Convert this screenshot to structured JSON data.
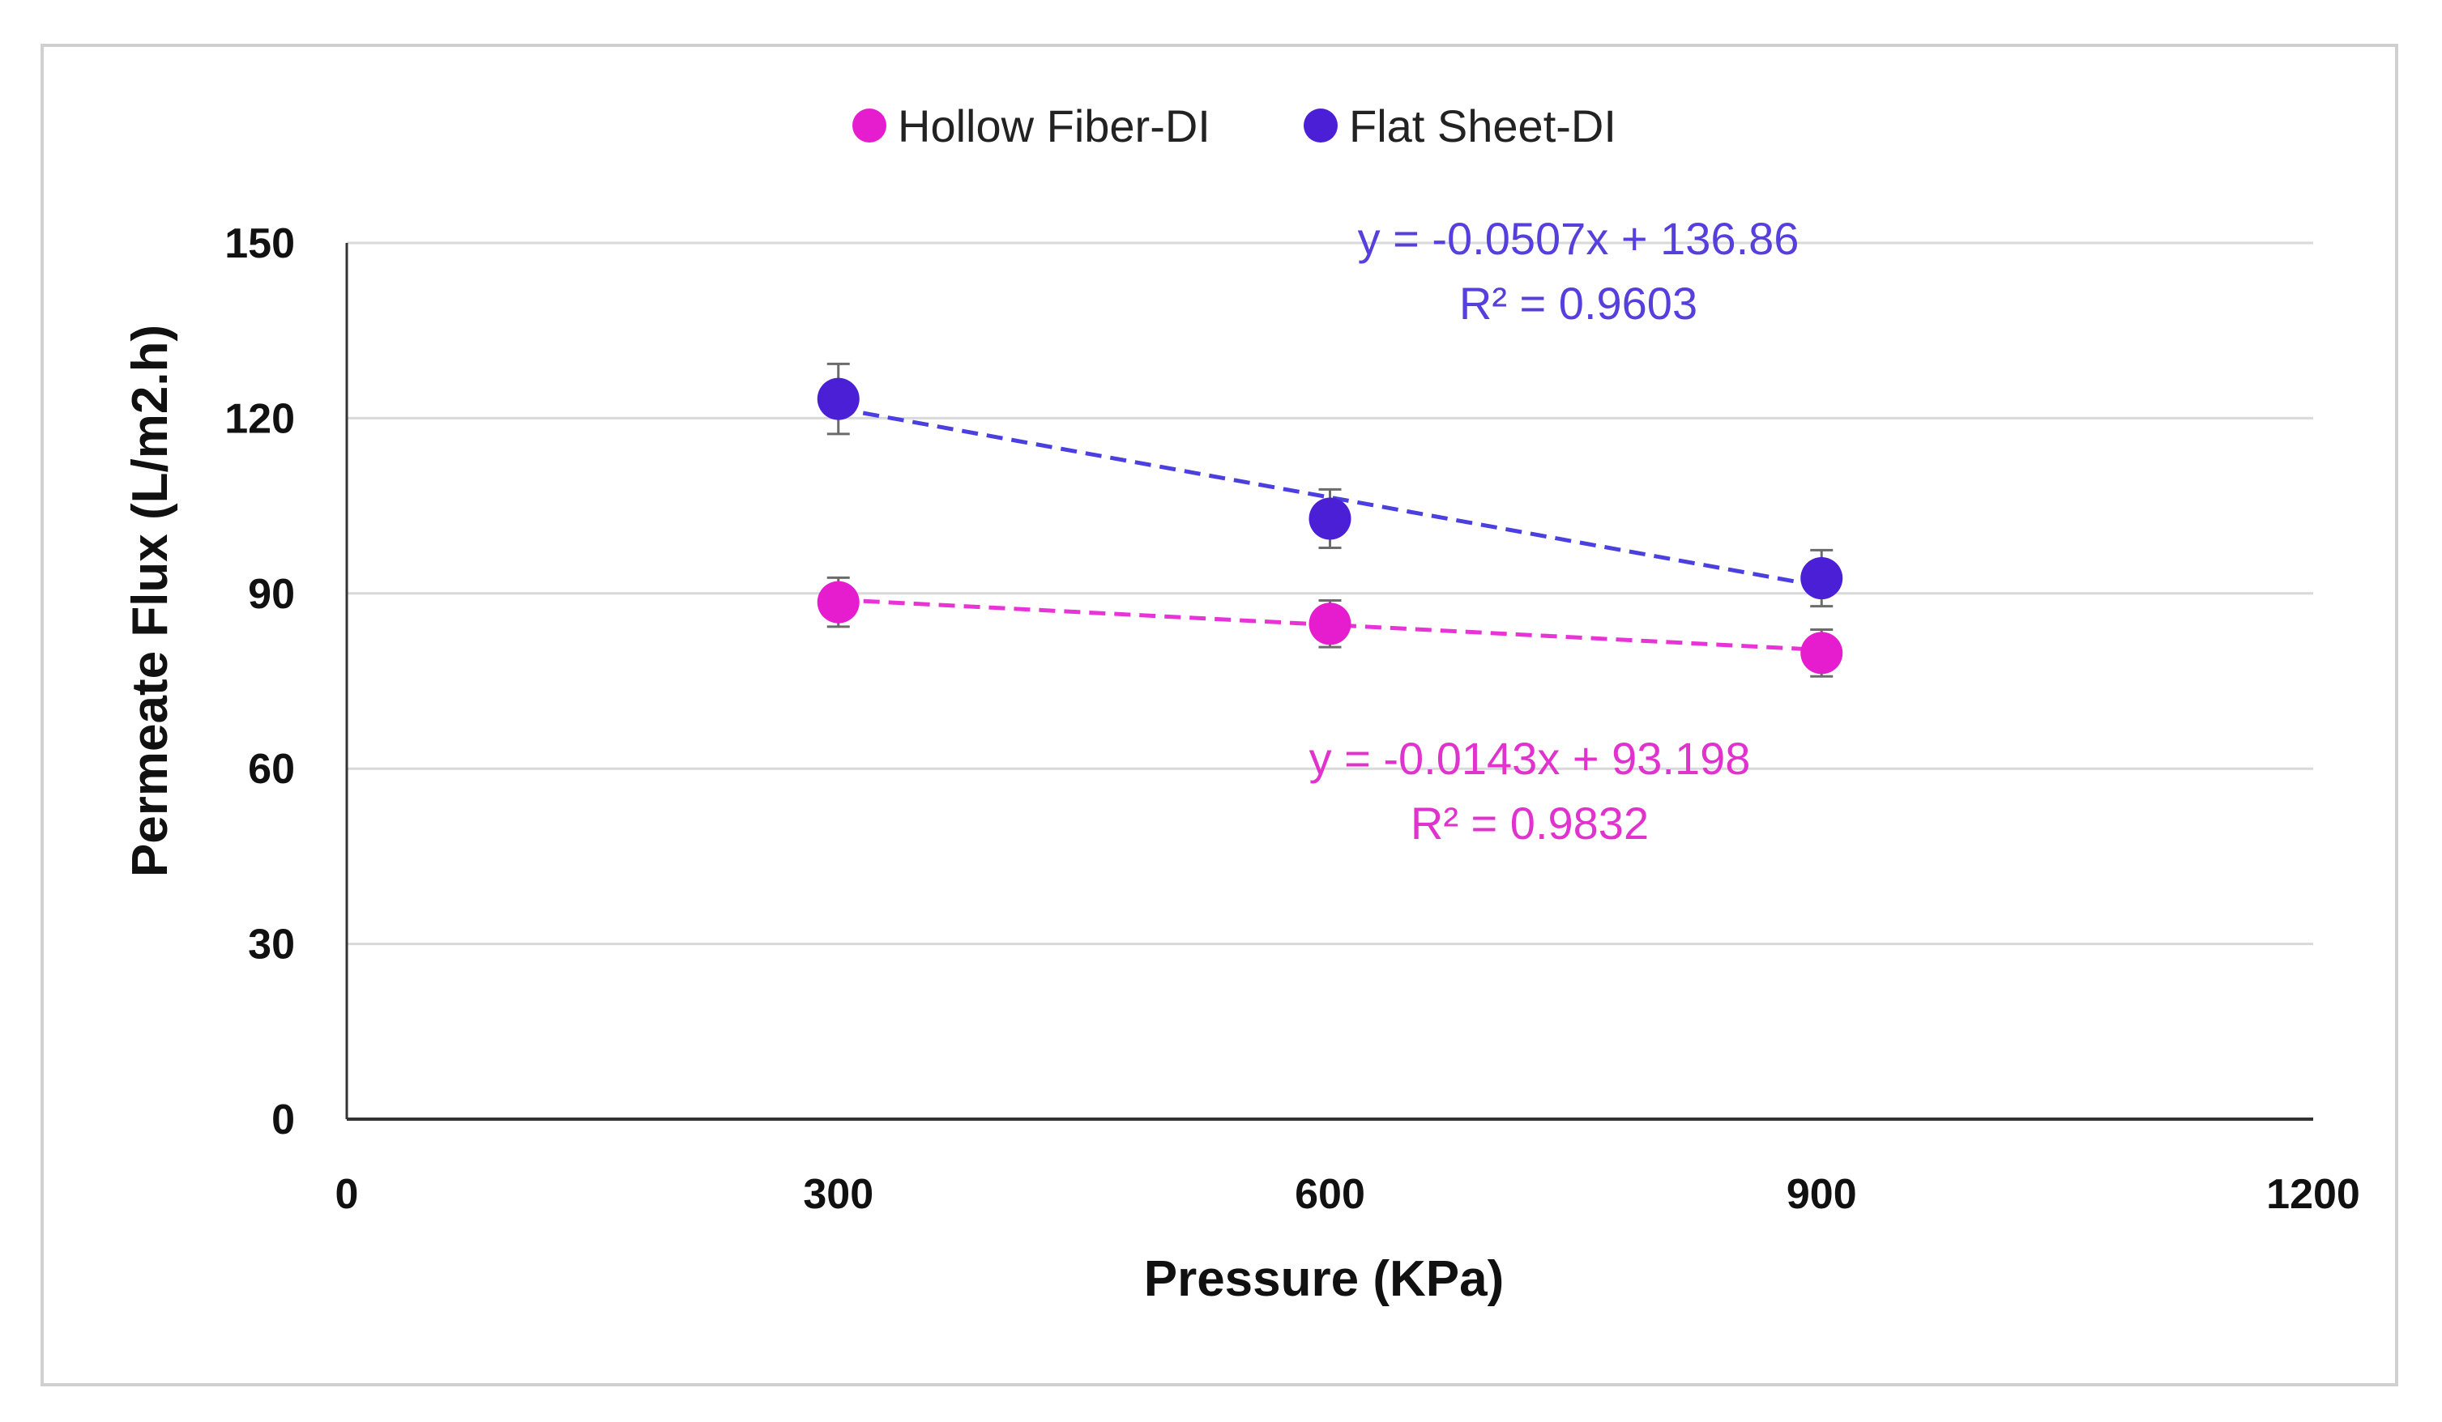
{
  "chart_data": {
    "type": "scatter",
    "title": "",
    "xlabel": "Pressure (KPa)",
    "ylabel": "Permeate Flux (L/m2.h)",
    "xlim": [
      0,
      1200
    ],
    "ylim": [
      0,
      150
    ],
    "xticks": [
      0,
      300,
      600,
      900,
      1200
    ],
    "yticks": [
      0,
      30,
      60,
      90,
      120,
      150
    ],
    "xtick_labels": [
      "0",
      "300",
      "600",
      "900",
      "1200"
    ],
    "ytick_labels": [
      "0",
      "30",
      "60",
      "90",
      "120",
      "150"
    ],
    "grid": "horizontal",
    "legend_position": "top",
    "series": [
      {
        "name": "Hollow Fiber-DI",
        "color": "#e61ccf",
        "x": [
          300,
          600,
          900
        ],
        "y": [
          88.5,
          84.8,
          79.8
        ],
        "error": [
          4.2,
          4.0,
          4.0
        ],
        "trendline": {
          "slope": -0.0143,
          "intercept": 93.198,
          "equation": "y = -0.0143x + 93.198",
          "r2": "R² = 0.9832"
        }
      },
      {
        "name": "Flat Sheet-DI",
        "color": "#4a1fd6",
        "x": [
          300,
          600,
          900
        ],
        "y": [
          123.3,
          102.8,
          92.6
        ],
        "error": [
          6.0,
          5.0,
          4.8
        ],
        "trendline": {
          "slope": -0.0507,
          "intercept": 136.86,
          "equation": "y = -0.0507x + 136.86",
          "r2": "R² = 0.9603"
        }
      }
    ]
  },
  "colors": {
    "trend_line_fiber": "#e833d6",
    "trend_line_flat": "#4b3fe0",
    "eq_text_fiber": "#e032cc",
    "eq_text_flat": "#5540dd",
    "gridline": "#d9d9d9",
    "axis": "#333333",
    "error_bar": "#6b6b6b"
  }
}
